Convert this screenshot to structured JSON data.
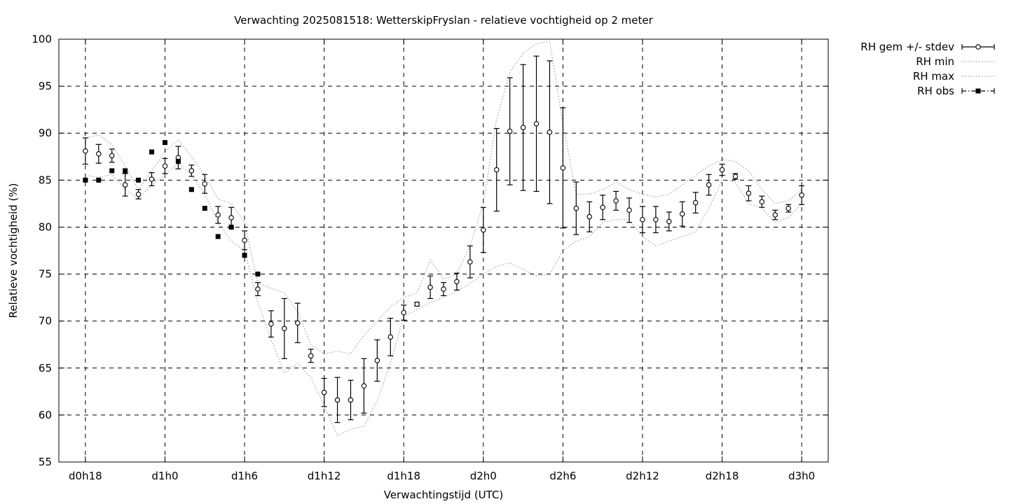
{
  "chart_data": {
    "type": "line",
    "title": "Verwachting 2025081518: WetterskipFryslan - relatieve vochtigheid op 2 meter",
    "xlabel": "Verwachtingstijd (UTC)",
    "ylabel": "Relatieve vochtigheid (%)",
    "xlim": [
      -2,
      56
    ],
    "ylim": [
      55,
      100
    ],
    "grid": true,
    "legend_position": "outside-top-right",
    "x_ticks": [
      {
        "x": 0,
        "label": "d0h18"
      },
      {
        "x": 6,
        "label": "d1h0"
      },
      {
        "x": 12,
        "label": "d1h6"
      },
      {
        "x": 18,
        "label": "d1h12"
      },
      {
        "x": 24,
        "label": "d1h18"
      },
      {
        "x": 30,
        "label": "d2h0"
      },
      {
        "x": 36,
        "label": "d2h6"
      },
      {
        "x": 42,
        "label": "d2h12"
      },
      {
        "x": 48,
        "label": "d2h18"
      },
      {
        "x": 54,
        "label": "d3h0"
      }
    ],
    "y_ticks": [
      55,
      60,
      65,
      70,
      75,
      80,
      85,
      90,
      95,
      100
    ],
    "x_units_note": "hours after d0h18",
    "series": [
      {
        "name": "RH gem +/- stdev",
        "style": "errorbars-open-circle",
        "x": [
          0,
          1,
          2,
          3,
          4,
          5,
          6,
          7,
          8,
          9,
          10,
          11,
          12,
          13,
          14,
          15,
          16,
          17,
          18,
          19,
          20,
          21,
          22,
          23,
          24,
          25,
          26,
          27,
          28,
          29,
          30,
          31,
          32,
          33,
          34,
          35,
          36,
          37,
          38,
          39,
          40,
          41,
          42,
          43,
          44,
          45,
          46,
          47,
          48,
          49,
          50,
          51,
          52,
          53,
          54
        ],
        "mean": [
          88.1,
          87.8,
          87.6,
          84.5,
          83.5,
          85.1,
          86.5,
          87.4,
          86.0,
          84.6,
          81.3,
          81.0,
          78.6,
          73.4,
          69.7,
          69.2,
          69.8,
          66.3,
          62.4,
          61.6,
          61.6,
          63.1,
          65.8,
          68.3,
          70.9,
          71.8,
          73.6,
          73.4,
          74.2,
          76.3,
          79.7,
          86.1,
          90.2,
          90.6,
          91.0,
          90.1,
          86.3,
          82.0,
          81.1,
          82.1,
          82.8,
          81.8,
          80.8,
          80.8,
          80.6,
          81.4,
          82.6,
          84.5,
          86.1,
          85.4,
          83.6,
          82.7,
          81.3,
          82.0,
          83.4
        ],
        "stdev": [
          1.4,
          1.0,
          0.7,
          1.2,
          0.5,
          0.7,
          0.8,
          1.2,
          0.6,
          1.0,
          0.9,
          1.1,
          1.0,
          0.7,
          1.4,
          3.2,
          2.1,
          0.7,
          1.5,
          2.4,
          2.1,
          2.9,
          2.2,
          2.0,
          0.8,
          0.2,
          1.2,
          0.7,
          0.9,
          1.7,
          2.4,
          4.4,
          5.7,
          6.7,
          7.2,
          7.6,
          6.4,
          2.8,
          1.6,
          1.3,
          1.0,
          1.3,
          1.4,
          1.4,
          1.0,
          1.3,
          1.1,
          1.1,
          0.6,
          0.3,
          0.8,
          0.6,
          0.5,
          0.4,
          1.0
        ]
      },
      {
        "name": "RH min",
        "style": "dotted",
        "x": [
          0,
          1,
          2,
          3,
          4,
          5,
          6,
          7,
          8,
          9,
          10,
          11,
          12,
          13,
          14,
          15,
          16,
          17,
          18,
          19,
          20,
          21,
          22,
          23,
          24,
          25,
          26,
          27,
          28,
          29,
          30,
          31,
          32,
          33,
          34,
          35,
          36,
          37,
          38,
          39,
          40,
          41,
          42,
          43,
          44,
          45,
          46,
          47,
          48,
          49,
          50,
          51,
          52,
          53,
          54
        ],
        "values": [
          85.5,
          85.3,
          85.6,
          84.0,
          83.0,
          84.5,
          85.5,
          86.8,
          85.5,
          83.5,
          80.5,
          78.5,
          77.5,
          72.0,
          68.0,
          64.5,
          65.5,
          64.0,
          61.0,
          57.8,
          58.5,
          58.8,
          61.5,
          65.5,
          70.5,
          71.2,
          72.0,
          72.5,
          73.2,
          74.0,
          75.0,
          75.8,
          76.2,
          75.5,
          74.8,
          75.0,
          77.5,
          78.5,
          79.0,
          80.5,
          80.8,
          80.8,
          79.0,
          78.0,
          78.5,
          79.0,
          79.5,
          82.0,
          85.0,
          84.8,
          82.5,
          82.0,
          80.5,
          81.0,
          82.5
        ]
      },
      {
        "name": "RH max",
        "style": "dotted",
        "x": [
          0,
          1,
          2,
          3,
          4,
          5,
          6,
          7,
          8,
          9,
          10,
          11,
          12,
          13,
          14,
          15,
          16,
          17,
          18,
          19,
          20,
          21,
          22,
          23,
          24,
          25,
          26,
          27,
          28,
          29,
          30,
          31,
          32,
          33,
          34,
          35,
          36,
          37,
          38,
          39,
          40,
          41,
          42,
          43,
          44,
          45,
          46,
          47,
          48,
          49,
          50,
          51,
          52,
          53,
          54
        ],
        "values": [
          89.5,
          89.8,
          88.8,
          86.5,
          84.0,
          86.0,
          88.0,
          89.3,
          87.5,
          85.5,
          83.0,
          82.5,
          80.5,
          74.0,
          73.5,
          73.0,
          71.0,
          67.5,
          66.5,
          66.8,
          66.5,
          68.5,
          70.0,
          71.5,
          72.5,
          73.0,
          76.5,
          74.5,
          75.0,
          78.0,
          82.5,
          91.5,
          96.5,
          98.5,
          99.5,
          99.8,
          91.0,
          83.5,
          83.5,
          84.0,
          84.8,
          84.0,
          83.5,
          83.2,
          83.5,
          84.5,
          85.5,
          86.5,
          87.2,
          87.0,
          86.0,
          84.0,
          82.5,
          82.8,
          84.0
        ]
      },
      {
        "name": "RH obs",
        "style": "filled-square",
        "x": [
          0,
          1,
          2,
          3,
          4,
          5,
          6,
          7,
          8,
          9,
          10,
          11,
          12,
          13
        ],
        "values": [
          85,
          85,
          86,
          86,
          85,
          88,
          89,
          87,
          84,
          82,
          79,
          80,
          77,
          75
        ]
      }
    ]
  }
}
